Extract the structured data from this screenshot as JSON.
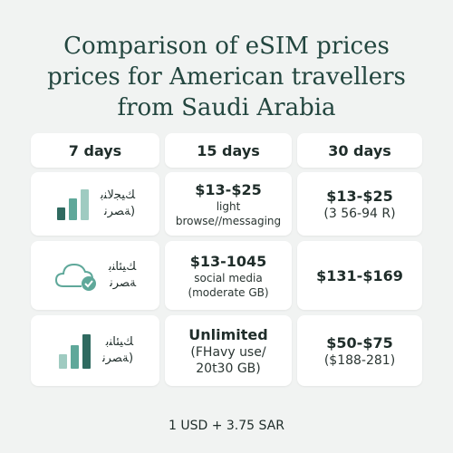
{
  "title": {
    "line1": "Comparison of eSIM prices",
    "line2": "prices for American travellers",
    "line3": "from Saudi Arabia"
  },
  "headers": [
    "7 days",
    "15 days",
    "30 days"
  ],
  "rows": [
    {
      "icon": "bar-chart-icon",
      "plan_line1": "ﻚﻴﺠﻟﺎﻨﺑ",
      "plan_line2": "(ﺔﺼﺮﻧ",
      "mid_price": "$13-$25",
      "mid_sub": "light browse//messaging",
      "right_price": "$13-$25",
      "right_sub": "(3 56-94 R)"
    },
    {
      "icon": "cloud-check-icon",
      "plan_line1": "ﻚﻴﺌﺎﻨﺑ",
      "plan_line2": "ﺔﺼﺮﻧ",
      "mid_price": "$13-1045",
      "mid_sub": "social media",
      "mid_sub2": "(moderate GB)",
      "right_price": "$131-$169",
      "right_sub": ""
    },
    {
      "icon": "bar-chart-icon",
      "plan_line1": "ﻚﻴﺌﺎﻨﺑ",
      "plan_line2": "(ﺔﺼﺮﻧ",
      "mid_price": "Unlimited",
      "mid_sub": "(FHavy use/",
      "mid_sub2": "20t30 GB)",
      "right_price": "$50-$75",
      "right_sub": "($188-281)"
    }
  ],
  "footer": "1 USD + 3.75 SAR",
  "colors": {
    "accent": "#5fa89a",
    "dark": "#2f6a60",
    "light": "#9fcbc1",
    "background": "#f1f3f2"
  }
}
